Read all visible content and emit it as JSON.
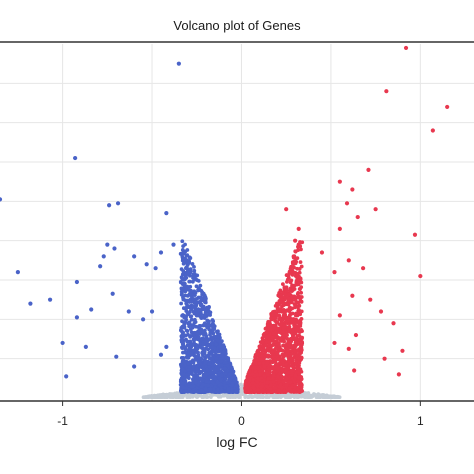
{
  "chart_data": {
    "type": "scatter",
    "title": "Volcano plot of Genes",
    "xlabel": "log FC",
    "ylabel": "",
    "xlim": [
      -1.35,
      1.3
    ],
    "ylim": [
      0,
      9
    ],
    "x_ticks": [
      -1,
      0,
      1
    ],
    "x_tick_labels": [
      "-1",
      "0",
      "1"
    ],
    "grid": true,
    "colors": {
      "down": "#4a63c8",
      "up": "#e8384f",
      "ns": "#c5cdd6"
    },
    "series": [
      {
        "key": "down",
        "points": [
          [
            -0.35,
            8.5
          ],
          [
            -0.93,
            6.1
          ],
          [
            -1.35,
            5.05
          ],
          [
            -0.74,
            4.9
          ],
          [
            -0.69,
            4.95
          ],
          [
            -0.42,
            4.7
          ],
          [
            -0.75,
            3.9
          ],
          [
            -0.71,
            3.8
          ],
          [
            -0.77,
            3.6
          ],
          [
            -0.79,
            3.35
          ],
          [
            -0.45,
            3.7
          ],
          [
            -0.38,
            3.9
          ],
          [
            -0.6,
            3.6
          ],
          [
            -0.53,
            3.4
          ],
          [
            -0.48,
            3.3
          ],
          [
            -1.25,
            3.2
          ],
          [
            -0.92,
            2.95
          ],
          [
            -0.72,
            2.65
          ],
          [
            -1.18,
            2.4
          ],
          [
            -1.07,
            2.5
          ],
          [
            -0.84,
            2.25
          ],
          [
            -0.92,
            2.05
          ],
          [
            -0.63,
            2.2
          ],
          [
            -0.55,
            2.0
          ],
          [
            -0.5,
            2.2
          ],
          [
            -0.87,
            1.3
          ],
          [
            -1.0,
            1.4
          ],
          [
            -0.7,
            1.05
          ],
          [
            -0.98,
            0.55
          ],
          [
            -0.6,
            0.8
          ],
          [
            -0.45,
            1.1
          ],
          [
            -0.42,
            1.3
          ]
        ]
      },
      {
        "key": "up",
        "points": [
          [
            0.92,
            8.9
          ],
          [
            1.15,
            7.4
          ],
          [
            0.81,
            7.8
          ],
          [
            1.07,
            6.8
          ],
          [
            0.55,
            5.5
          ],
          [
            0.62,
            5.3
          ],
          [
            0.71,
            5.8
          ],
          [
            0.59,
            4.95
          ],
          [
            0.65,
            4.6
          ],
          [
            0.75,
            4.8
          ],
          [
            0.25,
            4.8
          ],
          [
            0.32,
            4.3
          ],
          [
            0.97,
            4.15
          ],
          [
            0.3,
            4.0
          ],
          [
            0.55,
            4.3
          ],
          [
            0.45,
            3.7
          ],
          [
            0.6,
            3.5
          ],
          [
            0.68,
            3.3
          ],
          [
            0.52,
            3.2
          ],
          [
            1.0,
            3.1
          ],
          [
            0.72,
            2.5
          ],
          [
            0.62,
            2.6
          ],
          [
            0.55,
            2.1
          ],
          [
            0.78,
            2.2
          ],
          [
            0.85,
            1.9
          ],
          [
            0.64,
            1.6
          ],
          [
            0.9,
            1.2
          ],
          [
            0.8,
            1.0
          ],
          [
            0.63,
            0.7
          ],
          [
            0.88,
            0.6
          ],
          [
            0.6,
            1.25
          ],
          [
            0.52,
            1.4
          ]
        ]
      }
    ]
  }
}
